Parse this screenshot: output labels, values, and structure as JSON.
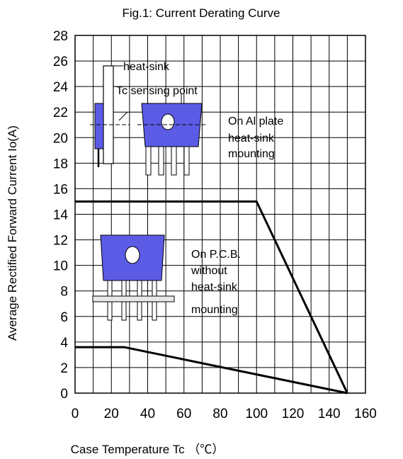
{
  "chart_data": {
    "type": "line",
    "title": "Fig.1: Current Derating Curve",
    "xlabel": "Case Temperature Tc （℃）",
    "ylabel": "Average Rectified Forward Current Io(A)",
    "xlim": [
      0,
      160
    ],
    "ylim": [
      0,
      28
    ],
    "x_ticks": [
      0,
      20,
      40,
      60,
      80,
      100,
      120,
      140,
      160
    ],
    "y_ticks": [
      0,
      2,
      4,
      6,
      8,
      10,
      12,
      14,
      16,
      18,
      20,
      22,
      24,
      26,
      28
    ],
    "grid": true,
    "series": [
      {
        "name": "On Al plate heat-sink mounting",
        "x": [
          0,
          100,
          150
        ],
        "y": [
          15,
          15,
          0
        ]
      },
      {
        "name": "On P.C.B. without heat-sink mounting",
        "x": [
          0,
          27,
          150
        ],
        "y": [
          3.6,
          3.6,
          0
        ]
      }
    ],
    "annotations": {
      "heat_sink": "heat-sink",
      "tc_point": "Tc sensing point",
      "al_plate": [
        "On Al plate",
        "heat-sink",
        "mounting"
      ],
      "pcb": [
        "On P.C.B.",
        "without",
        "heat-sink",
        "mounting"
      ]
    },
    "colors": {
      "component": "#5B5BE6",
      "line": "#000000",
      "grid": "#000000"
    }
  }
}
